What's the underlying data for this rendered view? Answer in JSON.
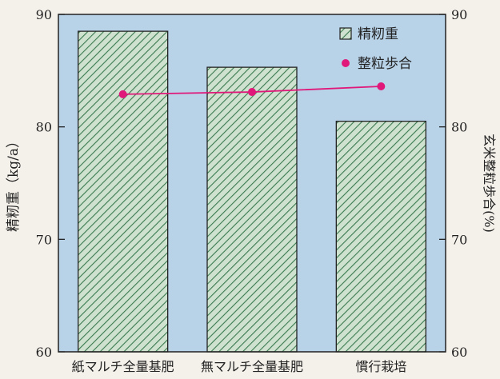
{
  "chart_data": {
    "type": "bar",
    "categories": [
      "紙マルチ全量基肥",
      "無マルチ全量基肥",
      "慣行栽培"
    ],
    "series": [
      {
        "name": "精籾重",
        "kind": "bar",
        "axis": "left",
        "values": [
          88.5,
          85.3,
          80.5
        ]
      },
      {
        "name": "整粒歩合",
        "kind": "line",
        "axis": "right",
        "values": [
          82.9,
          83.1,
          83.6
        ]
      }
    ],
    "ylabel_left": "精籾重（kg/a）",
    "ylabel_right": "玄米整粒歩合(%)",
    "ylim_left": [
      60,
      90
    ],
    "ylim_right": [
      60,
      90
    ],
    "yticks_left": [
      "60",
      "70",
      "80",
      "90"
    ],
    "yticks_right": [
      "60",
      "70",
      "80",
      "90"
    ],
    "legend_position": "top-right",
    "grid": false
  },
  "colors": {
    "plot_background": "#b8d2e8",
    "bar_fill": "#cfe2cf",
    "bar_hatch": "#3a7a50",
    "line": "#e0187a",
    "axis": "#222222"
  }
}
